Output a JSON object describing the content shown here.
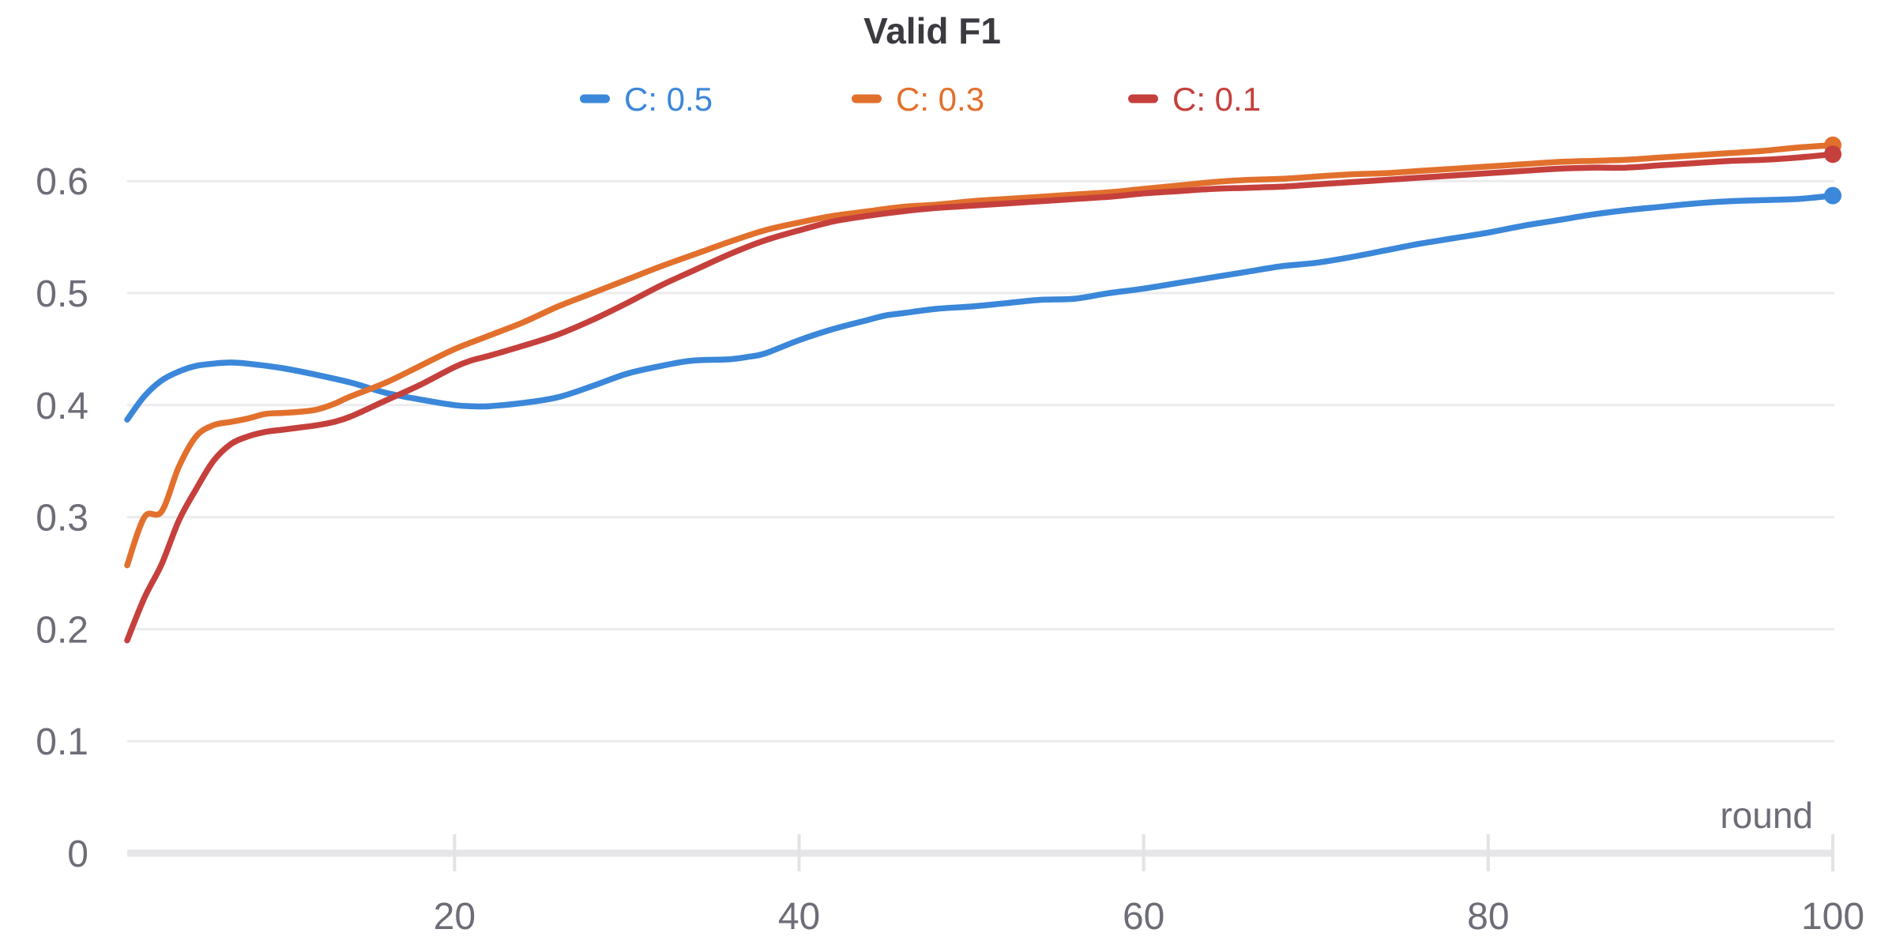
{
  "chart_data": {
    "type": "line",
    "title": "Valid F1",
    "xlabel": "round",
    "ylabel": "",
    "x_domain": [
      1,
      100
    ],
    "ylim": [
      0,
      0.65
    ],
    "x_ticks": [
      20,
      40,
      60,
      80,
      100
    ],
    "y_ticks": [
      0,
      0.1,
      0.2,
      0.3,
      0.4,
      0.5,
      0.6
    ],
    "grid": true,
    "legend_position": "top-center",
    "colors": {
      "grid": "#ececef",
      "zero_line": "#e6e6e9",
      "tick_mark": "#e3e3e7",
      "axis_text": "#6d6d78",
      "title_text": "#3a3a40"
    },
    "series": [
      {
        "name": "C: 0.5",
        "color": "#3b87d9",
        "points": [
          [
            1,
            0.387
          ],
          [
            2,
            0.408
          ],
          [
            3,
            0.422
          ],
          [
            4,
            0.43
          ],
          [
            5,
            0.435
          ],
          [
            6,
            0.437
          ],
          [
            7,
            0.438
          ],
          [
            8,
            0.437
          ],
          [
            10,
            0.433
          ],
          [
            12,
            0.427
          ],
          [
            14,
            0.42
          ],
          [
            16,
            0.411
          ],
          [
            18,
            0.405
          ],
          [
            20,
            0.4
          ],
          [
            21,
            0.399
          ],
          [
            22,
            0.399
          ],
          [
            24,
            0.402
          ],
          [
            26,
            0.407
          ],
          [
            28,
            0.417
          ],
          [
            30,
            0.428
          ],
          [
            32,
            0.435
          ],
          [
            33,
            0.438
          ],
          [
            34,
            0.44
          ],
          [
            36,
            0.441
          ],
          [
            37,
            0.443
          ],
          [
            38,
            0.446
          ],
          [
            40,
            0.458
          ],
          [
            42,
            0.468
          ],
          [
            44,
            0.476
          ],
          [
            45,
            0.48
          ],
          [
            46,
            0.482
          ],
          [
            48,
            0.486
          ],
          [
            50,
            0.488
          ],
          [
            52,
            0.491
          ],
          [
            54,
            0.494
          ],
          [
            56,
            0.495
          ],
          [
            58,
            0.5
          ],
          [
            60,
            0.504
          ],
          [
            62,
            0.509
          ],
          [
            64,
            0.514
          ],
          [
            66,
            0.519
          ],
          [
            68,
            0.524
          ],
          [
            70,
            0.527
          ],
          [
            72,
            0.532
          ],
          [
            74,
            0.538
          ],
          [
            76,
            0.544
          ],
          [
            78,
            0.549
          ],
          [
            80,
            0.554
          ],
          [
            82,
            0.56
          ],
          [
            84,
            0.565
          ],
          [
            86,
            0.57
          ],
          [
            88,
            0.574
          ],
          [
            90,
            0.577
          ],
          [
            92,
            0.58
          ],
          [
            94,
            0.582
          ],
          [
            96,
            0.583
          ],
          [
            98,
            0.584
          ],
          [
            100,
            0.587
          ]
        ]
      },
      {
        "name": "C: 0.3",
        "color": "#e2702d",
        "points": [
          [
            1,
            0.257
          ],
          [
            2,
            0.3
          ],
          [
            3,
            0.305
          ],
          [
            4,
            0.345
          ],
          [
            5,
            0.372
          ],
          [
            6,
            0.382
          ],
          [
            7,
            0.385
          ],
          [
            8,
            0.388
          ],
          [
            9,
            0.392
          ],
          [
            10,
            0.393
          ],
          [
            11,
            0.394
          ],
          [
            12,
            0.396
          ],
          [
            13,
            0.401
          ],
          [
            14,
            0.408
          ],
          [
            16,
            0.42
          ],
          [
            18,
            0.435
          ],
          [
            20,
            0.45
          ],
          [
            22,
            0.462
          ],
          [
            24,
            0.474
          ],
          [
            26,
            0.488
          ],
          [
            28,
            0.5
          ],
          [
            30,
            0.512
          ],
          [
            32,
            0.524
          ],
          [
            34,
            0.535
          ],
          [
            36,
            0.546
          ],
          [
            38,
            0.556
          ],
          [
            40,
            0.563
          ],
          [
            42,
            0.569
          ],
          [
            44,
            0.573
          ],
          [
            46,
            0.577
          ],
          [
            48,
            0.579
          ],
          [
            50,
            0.582
          ],
          [
            52,
            0.584
          ],
          [
            54,
            0.586
          ],
          [
            56,
            0.588
          ],
          [
            58,
            0.59
          ],
          [
            60,
            0.593
          ],
          [
            62,
            0.596
          ],
          [
            64,
            0.599
          ],
          [
            66,
            0.601
          ],
          [
            68,
            0.602
          ],
          [
            70,
            0.604
          ],
          [
            72,
            0.606
          ],
          [
            74,
            0.607
          ],
          [
            76,
            0.609
          ],
          [
            78,
            0.611
          ],
          [
            80,
            0.613
          ],
          [
            82,
            0.615
          ],
          [
            84,
            0.617
          ],
          [
            86,
            0.618
          ],
          [
            88,
            0.619
          ],
          [
            90,
            0.621
          ],
          [
            92,
            0.623
          ],
          [
            94,
            0.625
          ],
          [
            96,
            0.627
          ],
          [
            98,
            0.63
          ],
          [
            100,
            0.632
          ]
        ]
      },
      {
        "name": "C: 0.1",
        "color": "#c5403c",
        "points": [
          [
            1,
            0.19
          ],
          [
            2,
            0.228
          ],
          [
            3,
            0.258
          ],
          [
            4,
            0.297
          ],
          [
            5,
            0.325
          ],
          [
            6,
            0.35
          ],
          [
            7,
            0.365
          ],
          [
            8,
            0.372
          ],
          [
            9,
            0.376
          ],
          [
            10,
            0.378
          ],
          [
            11,
            0.38
          ],
          [
            12,
            0.382
          ],
          [
            13,
            0.385
          ],
          [
            14,
            0.39
          ],
          [
            16,
            0.404
          ],
          [
            18,
            0.418
          ],
          [
            20,
            0.434
          ],
          [
            21,
            0.44
          ],
          [
            22,
            0.444
          ],
          [
            24,
            0.453
          ],
          [
            26,
            0.463
          ],
          [
            28,
            0.476
          ],
          [
            30,
            0.491
          ],
          [
            32,
            0.507
          ],
          [
            34,
            0.521
          ],
          [
            36,
            0.535
          ],
          [
            38,
            0.547
          ],
          [
            40,
            0.556
          ],
          [
            42,
            0.564
          ],
          [
            44,
            0.569
          ],
          [
            46,
            0.573
          ],
          [
            48,
            0.576
          ],
          [
            50,
            0.578
          ],
          [
            52,
            0.58
          ],
          [
            54,
            0.582
          ],
          [
            56,
            0.584
          ],
          [
            58,
            0.586
          ],
          [
            60,
            0.589
          ],
          [
            62,
            0.591
          ],
          [
            64,
            0.593
          ],
          [
            66,
            0.594
          ],
          [
            68,
            0.595
          ],
          [
            70,
            0.597
          ],
          [
            72,
            0.599
          ],
          [
            74,
            0.601
          ],
          [
            76,
            0.603
          ],
          [
            78,
            0.605
          ],
          [
            80,
            0.607
          ],
          [
            82,
            0.609
          ],
          [
            84,
            0.611
          ],
          [
            86,
            0.612
          ],
          [
            88,
            0.612
          ],
          [
            90,
            0.614
          ],
          [
            92,
            0.616
          ],
          [
            94,
            0.618
          ],
          [
            96,
            0.619
          ],
          [
            98,
            0.621
          ],
          [
            100,
            0.624
          ]
        ]
      }
    ]
  }
}
